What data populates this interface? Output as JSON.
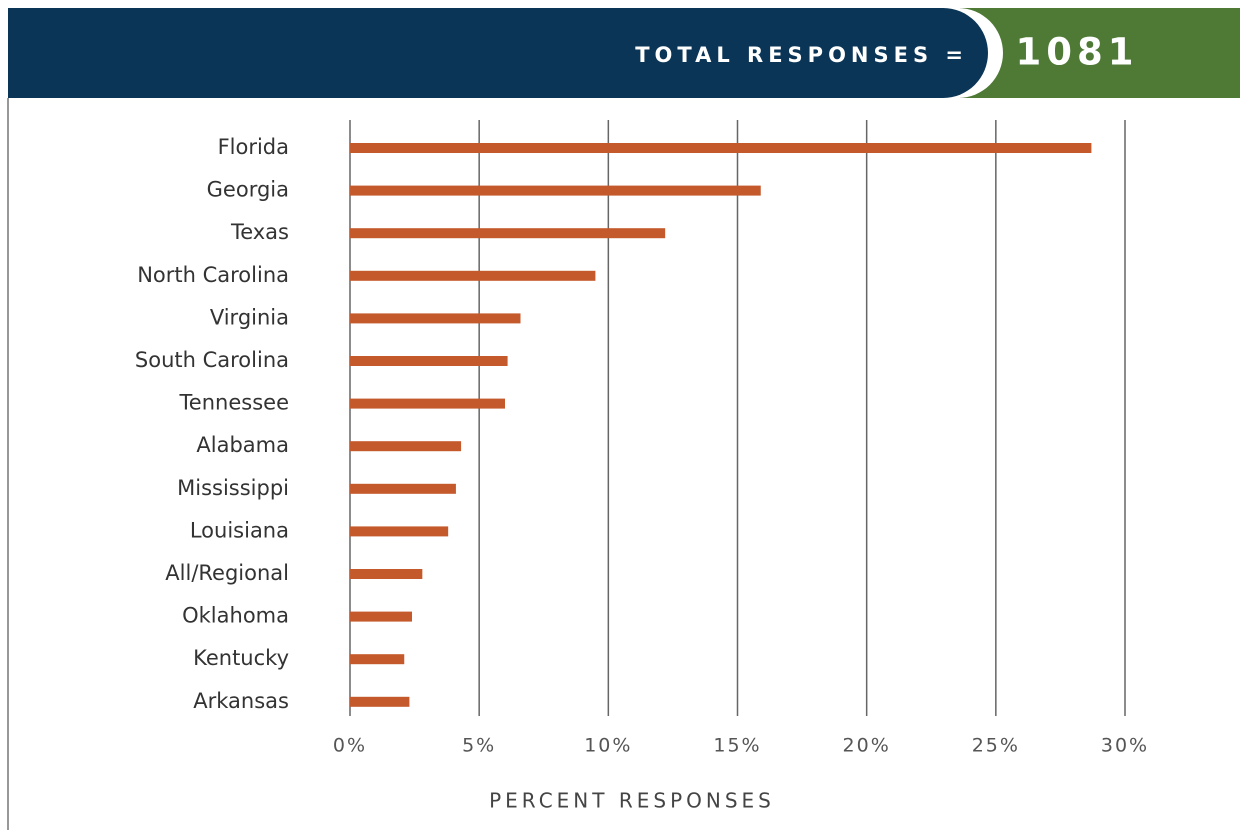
{
  "chart_data": {
    "type": "bar",
    "orientation": "horizontal",
    "header_label": "TOTAL RESPONSES =",
    "header_value": 1081,
    "xlabel": "PERCENT RESPONSES",
    "categories": [
      "Florida",
      "Georgia",
      "Texas",
      "North Carolina",
      "Virginia",
      "South Carolina",
      "Tennessee",
      "Alabama",
      "Mississippi",
      "Louisiana",
      "All/Regional",
      "Oklahoma",
      "Kentucky",
      "Arkansas"
    ],
    "values": [
      28.7,
      15.9,
      12.2,
      9.5,
      6.6,
      6.1,
      6.0,
      4.3,
      4.1,
      3.8,
      2.8,
      2.4,
      2.1,
      2.3
    ],
    "color": "#c4592b",
    "xlim": [
      0,
      30
    ],
    "xticks": [
      {
        "value": 0,
        "label": "0%"
      },
      {
        "value": 5,
        "label": "5%"
      },
      {
        "value": 10,
        "label": "10%"
      },
      {
        "value": 15,
        "label": "15%"
      },
      {
        "value": 20,
        "label": "20%"
      },
      {
        "value": 25,
        "label": "25%"
      },
      {
        "value": 30,
        "label": "30%"
      }
    ],
    "grid": true
  }
}
